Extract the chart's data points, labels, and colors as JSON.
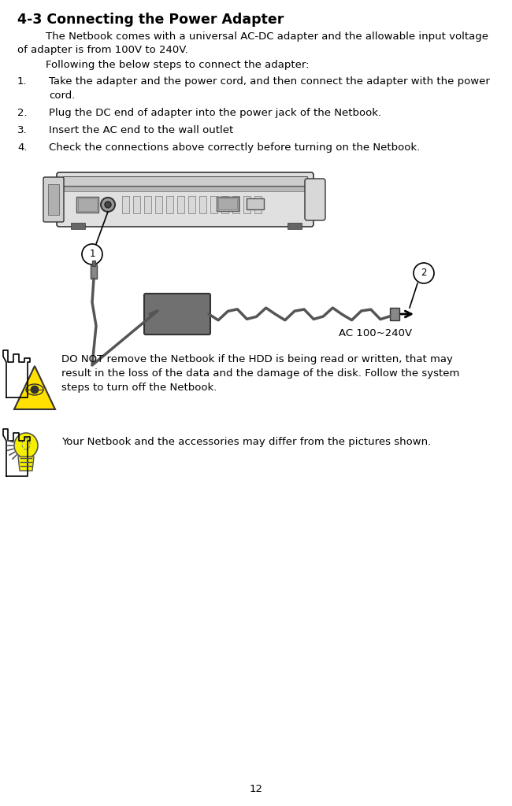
{
  "title": "4-3 Connecting the Power Adapter",
  "para1_line1": "The Netbook comes with a universal AC-DC adapter and the allowable input voltage",
  "para1_line2": "of adapter is from 100V to 240V.",
  "para2": "Following the below steps to connect the adapter:",
  "step1_line1": "Take the adapter and the power cord, and then connect the adapter with the power",
  "step1_line2": "cord.",
  "step2": "Plug the DC end of adapter into the power jack of the Netbook.",
  "step3": "Insert the AC end to the wall outlet",
  "step4": "Check the connections above correctly before turning on the Netbook.",
  "warn_line1": "DO NOT remove the Netbook if the HDD is being read or written, that may",
  "warn_line2": "result in the loss of the data and the damage of the disk. Follow the system",
  "warn_line3": "steps to turn off the Netbook.",
  "tip_text": "Your Netbook and the accessories may differ from the pictures shown.",
  "ac_label": "AC 100~240V",
  "page_number": "12",
  "bg_color": "#ffffff",
  "text_color": "#000000",
  "title_fontsize": 12.5,
  "body_fontsize": 9.5,
  "small_fontsize": 9
}
